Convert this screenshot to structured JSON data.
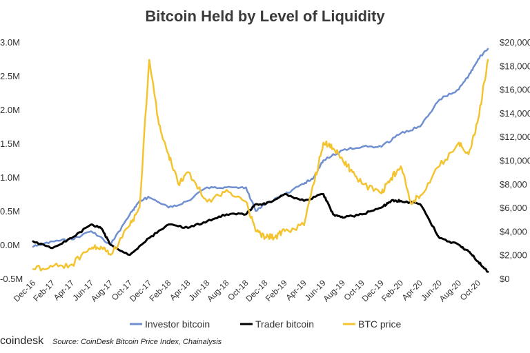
{
  "chart_data": {
    "type": "line",
    "title": "Bitcoin Held by Level of Liquidity",
    "xlabel": "",
    "ylabel_left": "",
    "ylabel_right": "",
    "categories": [
      "Dec-16",
      "Feb-17",
      "Apr-17",
      "Jun-17",
      "Aug-17",
      "Oct-17",
      "Dec-17",
      "Feb-18",
      "Apr-18",
      "Jun-18",
      "Aug-18",
      "Oct-18",
      "Dec-18",
      "Feb-19",
      "Apr-19",
      "Jun-19",
      "Aug-19",
      "Oct-19",
      "Dec-19",
      "Feb-20",
      "Apr-20",
      "Jun-20",
      "Aug-20",
      "Oct-20"
    ],
    "y_left_ticks": [
      "-0.5M",
      "0.0M",
      "0.5M",
      "1.0M",
      "1.5M",
      "2.0M",
      "2.5M",
      "3.0M"
    ],
    "y_left_range": [
      -0.5,
      3.0
    ],
    "y_right_ticks": [
      "$0",
      "$2,000",
      "$4,000",
      "$6,000",
      "$8,000",
      "$10,000",
      "$12,000",
      "$14,000",
      "$16,000",
      "$18,000",
      "$20,000"
    ],
    "y_right_range": [
      0,
      20000
    ],
    "grid": false,
    "legend_position": "bottom",
    "series": [
      {
        "name": "Investor bitcoin",
        "color": "#6f8fd0",
        "axis": "left",
        "x": [
          0,
          1,
          2,
          3,
          4,
          5,
          5.5,
          6,
          7,
          8,
          9,
          10,
          11,
          11.5,
          12,
          13,
          14,
          14.5,
          15,
          16,
          17,
          18,
          19,
          20,
          21,
          22,
          22.5,
          23,
          23.5
        ],
        "values": [
          -0.03,
          0.05,
          0.08,
          0.2,
          0.0,
          0.45,
          0.65,
          0.7,
          0.55,
          0.65,
          0.85,
          0.85,
          0.85,
          0.5,
          0.6,
          0.75,
          0.9,
          1.0,
          1.25,
          1.4,
          1.45,
          1.45,
          1.65,
          1.75,
          2.15,
          2.3,
          2.5,
          2.75,
          2.9
        ]
      },
      {
        "name": "Trader bitcoin",
        "color": "#000000",
        "axis": "left",
        "x": [
          0,
          1,
          2,
          3,
          3.5,
          4,
          5,
          6,
          7,
          8,
          9,
          10,
          11,
          11.5,
          12,
          13,
          14,
          15,
          15.5,
          16,
          17,
          18,
          18.5,
          19,
          20,
          21,
          22,
          22.5,
          23,
          23.5
        ],
        "values": [
          0.05,
          -0.05,
          0.1,
          0.3,
          0.25,
          0.0,
          -0.15,
          0.1,
          0.3,
          0.25,
          0.35,
          0.45,
          0.45,
          0.6,
          0.6,
          0.75,
          0.65,
          0.75,
          0.45,
          0.4,
          0.45,
          0.55,
          0.65,
          0.65,
          0.6,
          0.1,
          0.0,
          -0.1,
          -0.25,
          -0.4
        ]
      },
      {
        "name": "BTC price",
        "color": "#f4c430",
        "axis": "right",
        "x": [
          0,
          1,
          2,
          3,
          3.5,
          4,
          5,
          5.5,
          6,
          6.5,
          7,
          7.5,
          8,
          9,
          10,
          11,
          11.5,
          12,
          12.5,
          13,
          14,
          14.5,
          15,
          15.5,
          16,
          16.5,
          17,
          18,
          18.5,
          19,
          19.5,
          20,
          21,
          22,
          22.5,
          23,
          23.5
        ],
        "values": [
          800,
          1000,
          1200,
          2500,
          2700,
          2000,
          4500,
          6000,
          18500,
          13000,
          10500,
          8000,
          9000,
          6500,
          7500,
          6500,
          4000,
          3500,
          3500,
          4000,
          4500,
          8000,
          11500,
          11000,
          10000,
          9000,
          8000,
          7200,
          8500,
          9500,
          6500,
          7000,
          9500,
          11500,
          10500,
          13500,
          18500
        ]
      }
    ],
    "legend": [
      "Investor bitcoin",
      "Trader bitcoin",
      "BTC price"
    ],
    "footer": {
      "brand": "coindesk",
      "source": "Source: CoinDesk Bitcoin Price Index, Chainalysis"
    }
  }
}
